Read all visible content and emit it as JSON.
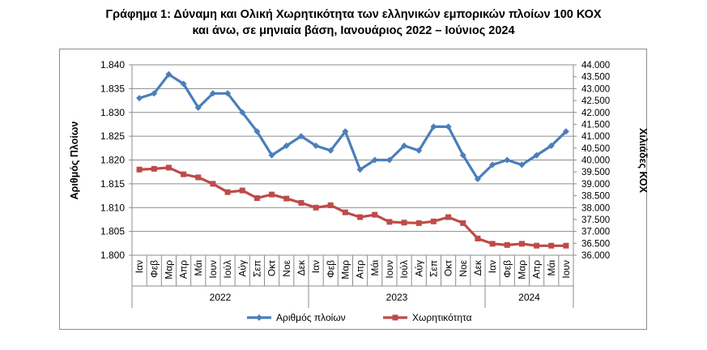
{
  "title": {
    "line1": "Γράφημα 1: Δύναμη και Ολική Χωρητικότητα των ελληνικών εμπορικών πλοίων 100 ΚΟΧ",
    "line2": "και άνω, σε μηνιαία βάση, Ιανουάριος 2022 – Ιούνιος 2024"
  },
  "chart_data": {
    "type": "line",
    "title": "Γράφημα 1: Δύναμη και Ολική Χωρητικότητα των ελληνικών εμπορικών πλοίων 100 ΚΟΧ και άνω, σε μηνιαία βάση, Ιανουάριος 2022 – Ιούνιος 2024",
    "x_months": [
      "Ιαν",
      "Φεβ",
      "Μαρ",
      "Απρ",
      "Μάι",
      "Ιουν",
      "Ιούλ",
      "Αύγ",
      "Σεπ",
      "Οκτ",
      "Νοε",
      "Δεκ",
      "Ιαν",
      "Φεβ",
      "Μαρ",
      "Απρ",
      "Μάι",
      "Ιουν",
      "Ιούλ",
      "Αύγ",
      "Σεπ",
      "Οκτ",
      "Νοε",
      "Δεκ",
      "Ιαν",
      "Φεβ",
      "Μαρ",
      "Απρ",
      "Μάι",
      "Ιουν"
    ],
    "year_groups": [
      {
        "label": "2022",
        "start": 0,
        "count": 12
      },
      {
        "label": "2023",
        "start": 12,
        "count": 12
      },
      {
        "label": "2024",
        "start": 24,
        "count": 6
      }
    ],
    "ylabel_left": "Αριθμός Πλοίων",
    "ylabel_right": "Χιλιάδες ΚΟΧ",
    "ylim_left": [
      1800,
      1840
    ],
    "yticks_left": [
      "1.800",
      "1.805",
      "1.810",
      "1.815",
      "1.820",
      "1.825",
      "1.830",
      "1.835",
      "1.840"
    ],
    "ylim_right": [
      36000,
      44000
    ],
    "yticks_right": [
      "36.000",
      "36.500",
      "37.000",
      "37.500",
      "38.000",
      "38.500",
      "39.000",
      "39.500",
      "40.000",
      "40.500",
      "41.000",
      "41.500",
      "42.000",
      "42.500",
      "43.000",
      "43.500",
      "44.000"
    ],
    "grid": "horizontal",
    "legend_position": "bottom",
    "series": [
      {
        "name": "Αριθμός πλοίων",
        "axis": "left",
        "color": "#4a7ebb",
        "marker": "diamond",
        "values": [
          1833,
          1834,
          1838,
          1836,
          1831,
          1834,
          1834,
          1830,
          1826,
          1821,
          1823,
          1825,
          1823,
          1822,
          1826,
          1818,
          1820,
          1820,
          1823,
          1822,
          1827,
          1827,
          1821,
          1816,
          1819,
          1820,
          1819,
          1821,
          1823,
          1826
        ]
      },
      {
        "name": "Χωρητικότητα",
        "axis": "right",
        "color": "#be4b48",
        "marker": "square",
        "values": [
          39600,
          39630,
          39680,
          39400,
          39270,
          39000,
          38650,
          38720,
          38400,
          38550,
          38380,
          38200,
          38000,
          38100,
          37800,
          37600,
          37700,
          37400,
          37370,
          37350,
          37420,
          37600,
          37350,
          36700,
          36480,
          36430,
          36480,
          36400,
          36400,
          36400
        ]
      }
    ]
  },
  "colors": {
    "line_primary": "#4a7ebb",
    "line_secondary": "#be4b48",
    "grid": "#8c8c8c",
    "frame": "#8c8c8c"
  }
}
